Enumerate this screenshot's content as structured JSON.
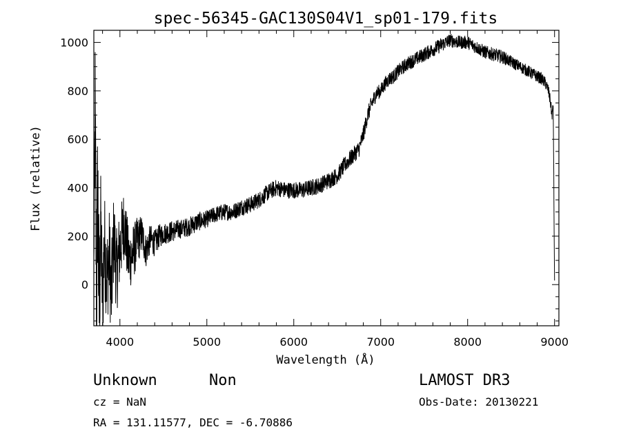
{
  "chart_data": {
    "type": "line",
    "title": "spec-56345-GAC130S04V1_sp01-179.fits",
    "xlabel": "Wavelength (Å)",
    "ylabel": "Flux (relative)",
    "xlim": [
      3700,
      9050
    ],
    "ylim": [
      -170,
      1050
    ],
    "x_ticks": [
      4000,
      5000,
      6000,
      7000,
      8000,
      9000
    ],
    "y_ticks": [
      0,
      200,
      400,
      600,
      800,
      1000
    ],
    "x_minor_step": 200,
    "y_minor_step": 50,
    "grid": false,
    "series": [
      {
        "x": [
          3700,
          3715,
          3730,
          3745,
          3760,
          3780,
          3800,
          3820,
          3850,
          3880,
          3900,
          3930,
          3960,
          4000,
          4050,
          4100,
          4150,
          4200,
          4250,
          4300,
          4350,
          4400,
          4450,
          4500,
          4600,
          4700,
          4800,
          4900,
          5000,
          5100,
          5200,
          5300,
          5400,
          5500,
          5600,
          5700,
          5800,
          5900,
          6000,
          6100,
          6200,
          6300,
          6400,
          6500,
          6600,
          6700,
          6750,
          6800,
          6850,
          6900,
          6950,
          7000,
          7050,
          7100,
          7150,
          7200,
          7300,
          7400,
          7500,
          7600,
          7700,
          7800,
          7900,
          8000,
          8100,
          8200,
          8300,
          8400,
          8500,
          8600,
          8700,
          8800,
          8850,
          8900,
          8930,
          8950,
          8970,
          8985,
          9000
        ],
        "y": [
          100,
          690,
          -100,
          420,
          -130,
          250,
          -80,
          180,
          30,
          120,
          -60,
          210,
          50,
          150,
          260,
          100,
          130,
          180,
          210,
          140,
          190,
          170,
          200,
          210,
          220,
          230,
          240,
          260,
          270,
          290,
          300,
          300,
          320,
          330,
          350,
          380,
          400,
          390,
          390,
          390,
          400,
          410,
          430,
          450,
          500,
          540,
          560,
          620,
          700,
          750,
          790,
          800,
          830,
          850,
          860,
          880,
          910,
          930,
          950,
          970,
          990,
          1010,
          1000,
          1000,
          980,
          960,
          950,
          940,
          920,
          900,
          880,
          860,
          850,
          830,
          800,
          760,
          700,
          740,
          0
        ],
        "noise": [
          40,
          380,
          380,
          380,
          380,
          220,
          220,
          220,
          200,
          200,
          200,
          180,
          180,
          160,
          150,
          130,
          120,
          100,
          80,
          70,
          60,
          55,
          50,
          45,
          45,
          40,
          40,
          40,
          35,
          35,
          35,
          35,
          35,
          35,
          35,
          35,
          35,
          35,
          35,
          35,
          35,
          35,
          35,
          35,
          35,
          35,
          35,
          35,
          35,
          35,
          30,
          30,
          30,
          30,
          30,
          30,
          30,
          30,
          30,
          30,
          30,
          28,
          28,
          28,
          28,
          28,
          28,
          28,
          25,
          25,
          25,
          25,
          25,
          25,
          25,
          25,
          25,
          20,
          10
        ]
      }
    ]
  },
  "annotations": {
    "object_name": "Unknown",
    "object_class": "Non",
    "survey": "LAMOST DR3",
    "cz": "cz = NaN",
    "obs_date": "Obs-Date: 20130221",
    "coords": "RA = 131.11577, DEC =  -6.70886"
  }
}
